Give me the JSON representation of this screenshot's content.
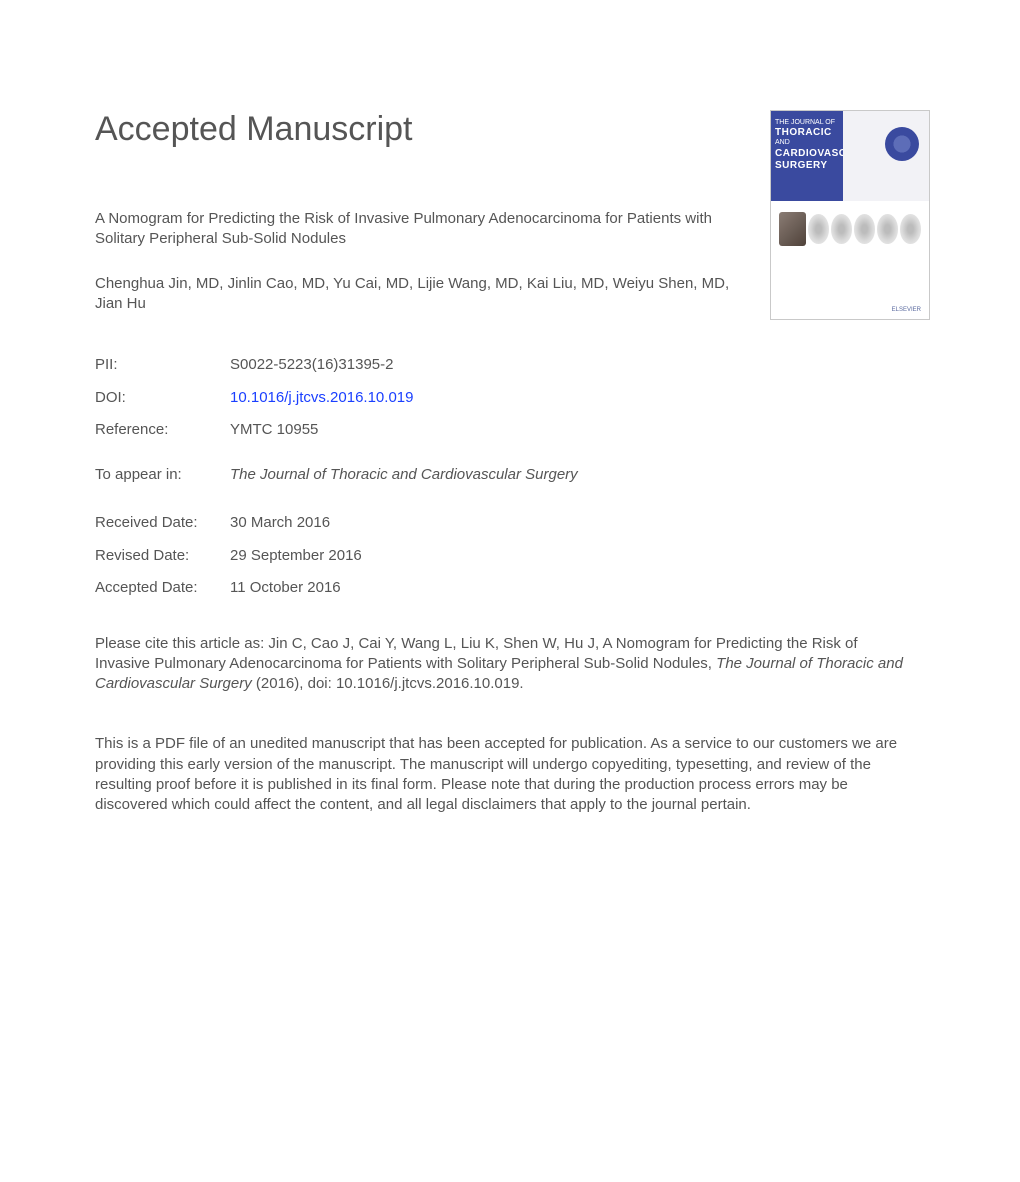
{
  "heading": "Accepted Manuscript",
  "article_title": "A Nomogram for Predicting the Risk of Invasive Pulmonary Adenocarcinoma for Patients with Solitary Peripheral Sub-Solid Nodules",
  "authors": "Chenghua Jin, MD, Jinlin Cao, MD, Yu Cai, MD, Lijie Wang, MD, Kai Liu, MD, Weiyu Shen, MD, Jian Hu",
  "meta": {
    "pii_label": "PII:",
    "pii_value": "S0022-5223(16)31395-2",
    "doi_label": "DOI:",
    "doi_value": "10.1016/j.jtcvs.2016.10.019",
    "ref_label": "Reference:",
    "ref_value": "YMTC 10955",
    "appear_label": "To appear in:",
    "appear_value": "The Journal of Thoracic and Cardiovascular Surgery",
    "received_label": "Received Date:",
    "received_value": "30 March 2016",
    "revised_label": "Revised Date:",
    "revised_value": "29 September 2016",
    "accepted_label": "Accepted Date:",
    "accepted_value": "11 October 2016"
  },
  "citation": {
    "prefix": "Please cite this article as: Jin C, Cao J, Cai Y, Wang L, Liu K, Shen W, Hu J, A Nomogram for Predicting the Risk of Invasive Pulmonary Adenocarcinoma for Patients with Solitary Peripheral Sub-Solid Nodules, ",
    "journal": "The Journal of Thoracic and Cardiovascular Surgery",
    "suffix": " (2016), doi: 10.1016/j.jtcvs.2016.10.019."
  },
  "disclaimer": "This is a PDF file of an unedited manuscript that has been accepted for publication. As a service to our customers we are providing this early version of the manuscript. The manuscript will undergo copyediting, typesetting, and review of the resulting proof before it is published in its final form. Please note that during the production process errors may be discovered which could affect the content, and all legal disclaimers that apply to the journal pertain.",
  "cover": {
    "line1": "THE JOURNAL OF",
    "line2": "THORACIC",
    "line3": "AND",
    "line4": "CARDIOVASCULAR",
    "line5": "SURGERY",
    "publisher": "ELSEVIER"
  },
  "colors": {
    "text": "#555555",
    "link": "#1a3fff",
    "cover_blue": "#3a4a9f",
    "background": "#ffffff"
  },
  "typography": {
    "heading_fontsize": 34,
    "body_fontsize": 15,
    "font_family": "Arial"
  }
}
